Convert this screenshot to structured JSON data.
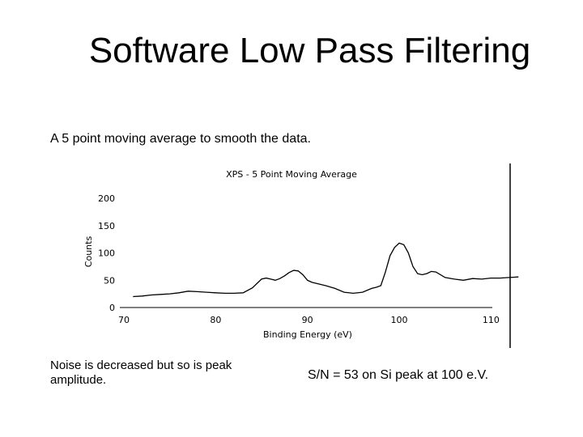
{
  "slide": {
    "title": "Software Low Pass Filtering",
    "subtitle": "A 5 point moving average to smooth the data.",
    "note_left": "Noise is decreased but so is peak amplitude.",
    "note_right": "S/N = 53 on Si peak at 100 e.V."
  },
  "chart_data": {
    "type": "line",
    "title": "XPS - 5 Point Moving Average",
    "xlabel": "Binding Energy (eV)",
    "ylabel": "Counts",
    "xlim": [
      70,
      115
    ],
    "ylim": [
      0,
      200
    ],
    "xticks": [
      70,
      80,
      90,
      100,
      110
    ],
    "yticks": [
      0,
      50,
      100,
      150,
      200
    ],
    "grid": false,
    "legend": "none",
    "line_color": "#000000",
    "series": [
      {
        "x": [
          71,
          72,
          73,
          74,
          75,
          76,
          77,
          78,
          79,
          80,
          81,
          82,
          83,
          84,
          85,
          85.5,
          86,
          86.5,
          87,
          87.5,
          88,
          88.5,
          89,
          89.5,
          90,
          90.5,
          91,
          92,
          93,
          94,
          95,
          96,
          97,
          97.5,
          98,
          98.5,
          99,
          99.5,
          100,
          100.5,
          101,
          101.5,
          102,
          102.5,
          103,
          103.5,
          104,
          105,
          106,
          107,
          108,
          109,
          110,
          111,
          112,
          113
        ],
        "y": [
          20,
          21,
          23,
          24,
          25,
          27,
          30,
          29,
          28,
          27,
          26,
          26,
          27,
          36,
          52,
          54,
          52,
          50,
          53,
          58,
          64,
          68,
          67,
          60,
          50,
          46,
          44,
          40,
          35,
          28,
          26,
          28,
          35,
          37,
          40,
          65,
          95,
          110,
          118,
          115,
          100,
          75,
          62,
          60,
          62,
          66,
          65,
          55,
          52,
          50,
          53,
          52,
          54,
          54,
          55,
          56
        ]
      }
    ]
  }
}
